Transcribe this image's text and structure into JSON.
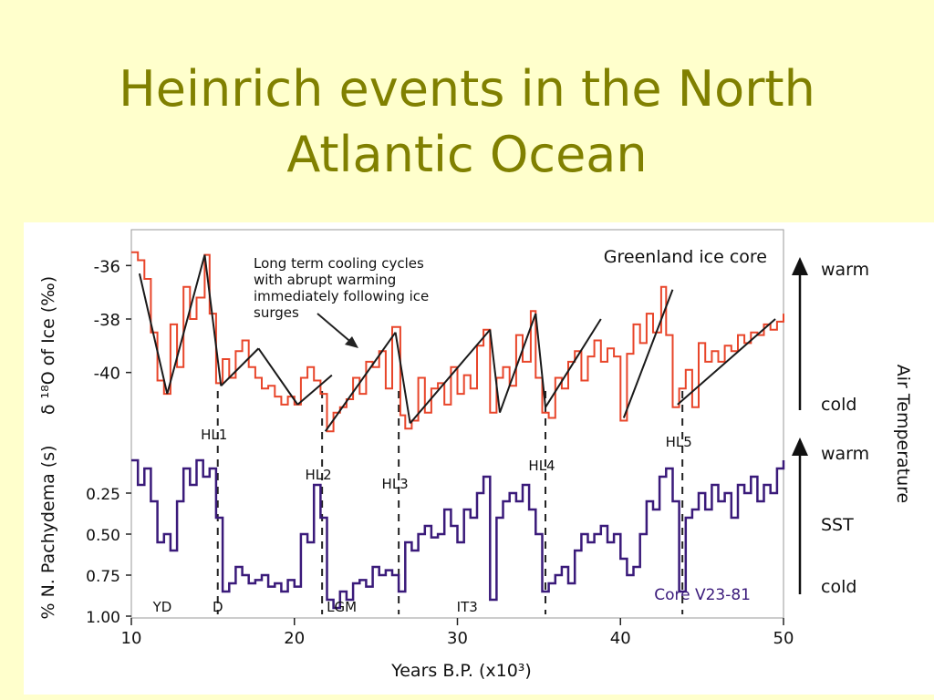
{
  "slide": {
    "title_line1": "Heinrich events in the North",
    "title_line2": "Atlantic Ocean"
  },
  "colors": {
    "background": "#ffffcc",
    "title": "#808000",
    "ice_core_series": "#e8452a",
    "sst_series": "#3a1a7a",
    "trend_lines": "#1a1a1a"
  },
  "chart_data": {
    "type": "line",
    "xlabel": "Years B.P. (x10³)",
    "x_ticks": [
      10,
      20,
      30,
      40,
      50
    ],
    "xlim": [
      10,
      50
    ],
    "right_axis_label": "Air Temperature",
    "annotation_text": [
      "Long term cooling cycles",
      "with abrupt warming",
      "immediately following ice",
      "surges"
    ],
    "panels": [
      {
        "name": "Greenland ice core",
        "ylabel": "δ ¹⁸O of Ice (‰)",
        "y_ticks": [
          -36,
          -38,
          -40
        ],
        "ylim": [
          -42.5,
          -35
        ],
        "top_label": "warm",
        "bottom_label": "cold",
        "series": [
          {
            "x": [
              10,
              10.4,
              10.8,
              11.2,
              11.6,
              12,
              12.4,
              12.8,
              13.2,
              13.6,
              14,
              14.5,
              14.8,
              15.2,
              15.6,
              16,
              16.4,
              16.8,
              17.2,
              17.6,
              18,
              18.4,
              18.8,
              19.2,
              19.6,
              20,
              20.4,
              20.8,
              21.2,
              21.6,
              22,
              22.4,
              22.8,
              23.2,
              23.6,
              24,
              24.4,
              24.8,
              25.2,
              25.6,
              26,
              26.5,
              26.8,
              27.2,
              27.6,
              28,
              28.4,
              28.8,
              29.2,
              29.6,
              30,
              30.4,
              30.8,
              31.2,
              31.6,
              32,
              32.4,
              32.8,
              33.2,
              33.6,
              34,
              34.5,
              34.8,
              35.2,
              35.6,
              36,
              36.4,
              36.8,
              37.2,
              37.6,
              38,
              38.4,
              38.8,
              39.2,
              39.6,
              40,
              40.4,
              40.8,
              41.2,
              41.6,
              42,
              42.5,
              42.8,
              43.2,
              43.6,
              44,
              44.4,
              44.8,
              45.2,
              45.6,
              46,
              46.4,
              46.8,
              47.2,
              47.6,
              48,
              48.4,
              48.8,
              49.2,
              49.6,
              50
            ],
            "values": [
              -35.5,
              -35.8,
              -36.5,
              -38.5,
              -40.3,
              -40.8,
              -38.2,
              -39.8,
              -36.8,
              -38,
              -37.2,
              -35.6,
              -37.8,
              -40.4,
              -39.5,
              -40.2,
              -39.2,
              -38.8,
              -39.8,
              -40.2,
              -40.6,
              -40.5,
              -40.9,
              -41.2,
              -40.9,
              -41.2,
              -40.2,
              -39.8,
              -40.3,
              -40.8,
              -42.2,
              -41.5,
              -41.3,
              -41,
              -40.2,
              -40.8,
              -39.6,
              -39.8,
              -39.2,
              -40.6,
              -38.3,
              -41.6,
              -42.1,
              -41.8,
              -40.2,
              -41.5,
              -40.6,
              -40.4,
              -41.2,
              -39.8,
              -40.8,
              -40.1,
              -40.6,
              -39,
              -38.4,
              -41.5,
              -40.2,
              -39.8,
              -40.5,
              -38.6,
              -39.6,
              -37.7,
              -40.2,
              -41.5,
              -41.7,
              -40.2,
              -40.6,
              -39.6,
              -39.2,
              -40.3,
              -39.4,
              -38.8,
              -39.6,
              -39.1,
              -39.4,
              -41.8,
              -39.3,
              -38.2,
              -38.9,
              -37.8,
              -38.5,
              -36.8,
              -38.6,
              -41.3,
              -40.6,
              -39.9,
              -41.3,
              -38.9,
              -39.6,
              -39.2,
              -39.6,
              -39,
              -39.2,
              -38.6,
              -38.9,
              -38.5,
              -38.6,
              -38.2,
              -38.4,
              -38.1,
              -37.8
            ]
          }
        ],
        "cycle_trend_lines": [
          {
            "x": [
              10.5,
              12.2
            ],
            "y": [
              -36.3,
              -40.8
            ]
          },
          {
            "x": [
              12.2,
              14.5
            ],
            "y": [
              -40.8,
              -35.6
            ]
          },
          {
            "x": [
              14.5,
              15.5
            ],
            "y": [
              -35.6,
              -40.5
            ]
          },
          {
            "x": [
              15.5,
              17.8
            ],
            "y": [
              -40.5,
              -39.1
            ]
          },
          {
            "x": [
              17.8,
              20.2
            ],
            "y": [
              -39.1,
              -41.2
            ]
          },
          {
            "x": [
              20.2,
              22.3
            ],
            "y": [
              -41.2,
              -40.1
            ]
          },
          {
            "x": [
              21.9,
              26.2
            ],
            "y": [
              -42.2,
              -38.5
            ]
          },
          {
            "x": [
              26.2,
              27.1
            ],
            "y": [
              -38.5,
              -41.9
            ]
          },
          {
            "x": [
              27.1,
              32
            ],
            "y": [
              -41.9,
              -38.4
            ]
          },
          {
            "x": [
              32,
              32.6
            ],
            "y": [
              -38.4,
              -41.5
            ]
          },
          {
            "x": [
              32.6,
              34.8
            ],
            "y": [
              -41.5,
              -37.8
            ]
          },
          {
            "x": [
              34.8,
              35.4
            ],
            "y": [
              -37.8,
              -41.3
            ]
          },
          {
            "x": [
              35.4,
              38.8
            ],
            "y": [
              -41.3,
              -38
            ]
          },
          {
            "x": [
              40.2,
              43.2
            ],
            "y": [
              -41.7,
              -36.9
            ]
          },
          {
            "x": [
              43.5,
              49.5
            ],
            "y": [
              -41.2,
              -38
            ]
          }
        ]
      },
      {
        "name": "Core V23-81",
        "ylabel": "% N. Pachydema (s)",
        "y_ticks": [
          "0.25",
          "0.50",
          "0.75",
          "1.00"
        ],
        "ylim": [
          1.0,
          0.0
        ],
        "top_label": "warm",
        "middle_label": "SST",
        "bottom_label": "cold",
        "series": [
          {
            "x": [
              10,
              10.4,
              10.8,
              11.2,
              11.6,
              12,
              12.4,
              12.8,
              13.2,
              13.6,
              14,
              14.4,
              14.8,
              15.2,
              15.6,
              16,
              16.4,
              16.8,
              17.2,
              17.6,
              18,
              18.4,
              18.8,
              19.2,
              19.6,
              20,
              20.4,
              20.8,
              21.2,
              21.6,
              22,
              22.4,
              22.8,
              23.2,
              23.6,
              24,
              24.4,
              24.8,
              25.2,
              25.6,
              26,
              26.4,
              26.8,
              27.2,
              27.6,
              28,
              28.4,
              28.8,
              29.2,
              29.6,
              30,
              30.4,
              30.8,
              31.2,
              31.6,
              32,
              32.4,
              32.8,
              33.2,
              33.6,
              34,
              34.4,
              34.8,
              35.2,
              35.6,
              36,
              36.4,
              36.8,
              37.2,
              37.6,
              38,
              38.4,
              38.8,
              39.2,
              39.6,
              40,
              40.4,
              40.8,
              41.2,
              41.6,
              42,
              42.4,
              42.8,
              43.2,
              43.6,
              44,
              44.4,
              44.8,
              45.2,
              45.6,
              46,
              46.4,
              46.8,
              47.2,
              47.6,
              48,
              48.4,
              48.8,
              49.2,
              49.6,
              50
            ],
            "values": [
              0.05,
              0.2,
              0.1,
              0.3,
              0.55,
              0.5,
              0.6,
              0.3,
              0.1,
              0.2,
              0.05,
              0.15,
              0.1,
              0.4,
              0.85,
              0.8,
              0.7,
              0.75,
              0.8,
              0.78,
              0.75,
              0.82,
              0.8,
              0.85,
              0.78,
              0.82,
              0.5,
              0.55,
              0.2,
              0.4,
              0.9,
              0.95,
              0.85,
              0.9,
              0.8,
              0.78,
              0.82,
              0.7,
              0.75,
              0.72,
              0.75,
              0.85,
              0.55,
              0.6,
              0.5,
              0.45,
              0.52,
              0.5,
              0.35,
              0.45,
              0.55,
              0.35,
              0.4,
              0.25,
              0.15,
              0.9,
              0.4,
              0.3,
              0.25,
              0.3,
              0.2,
              0.35,
              0.5,
              0.85,
              0.8,
              0.75,
              0.7,
              0.8,
              0.6,
              0.5,
              0.55,
              0.5,
              0.45,
              0.55,
              0.5,
              0.65,
              0.75,
              0.7,
              0.5,
              0.3,
              0.35,
              0.15,
              0.1,
              0.3,
              0.85,
              0.4,
              0.35,
              0.25,
              0.35,
              0.2,
              0.3,
              0.25,
              0.4,
              0.2,
              0.25,
              0.15,
              0.3,
              0.2,
              0.25,
              0.1,
              0.05
            ]
          }
        ]
      }
    ],
    "events": [
      {
        "label": "HL1",
        "x": 15.3
      },
      {
        "label": "HL2",
        "x": 21.7
      },
      {
        "label": "HL3",
        "x": 26.4
      },
      {
        "label": "HL4",
        "x": 35.4
      },
      {
        "label": "HL5",
        "x": 43.8
      }
    ],
    "bottom_labels": [
      {
        "label": "YD",
        "x": 11.9
      },
      {
        "label": "D",
        "x": 15.3
      },
      {
        "label": "LGM",
        "x": 22.9
      },
      {
        "label": "IT3",
        "x": 30.6
      }
    ]
  }
}
